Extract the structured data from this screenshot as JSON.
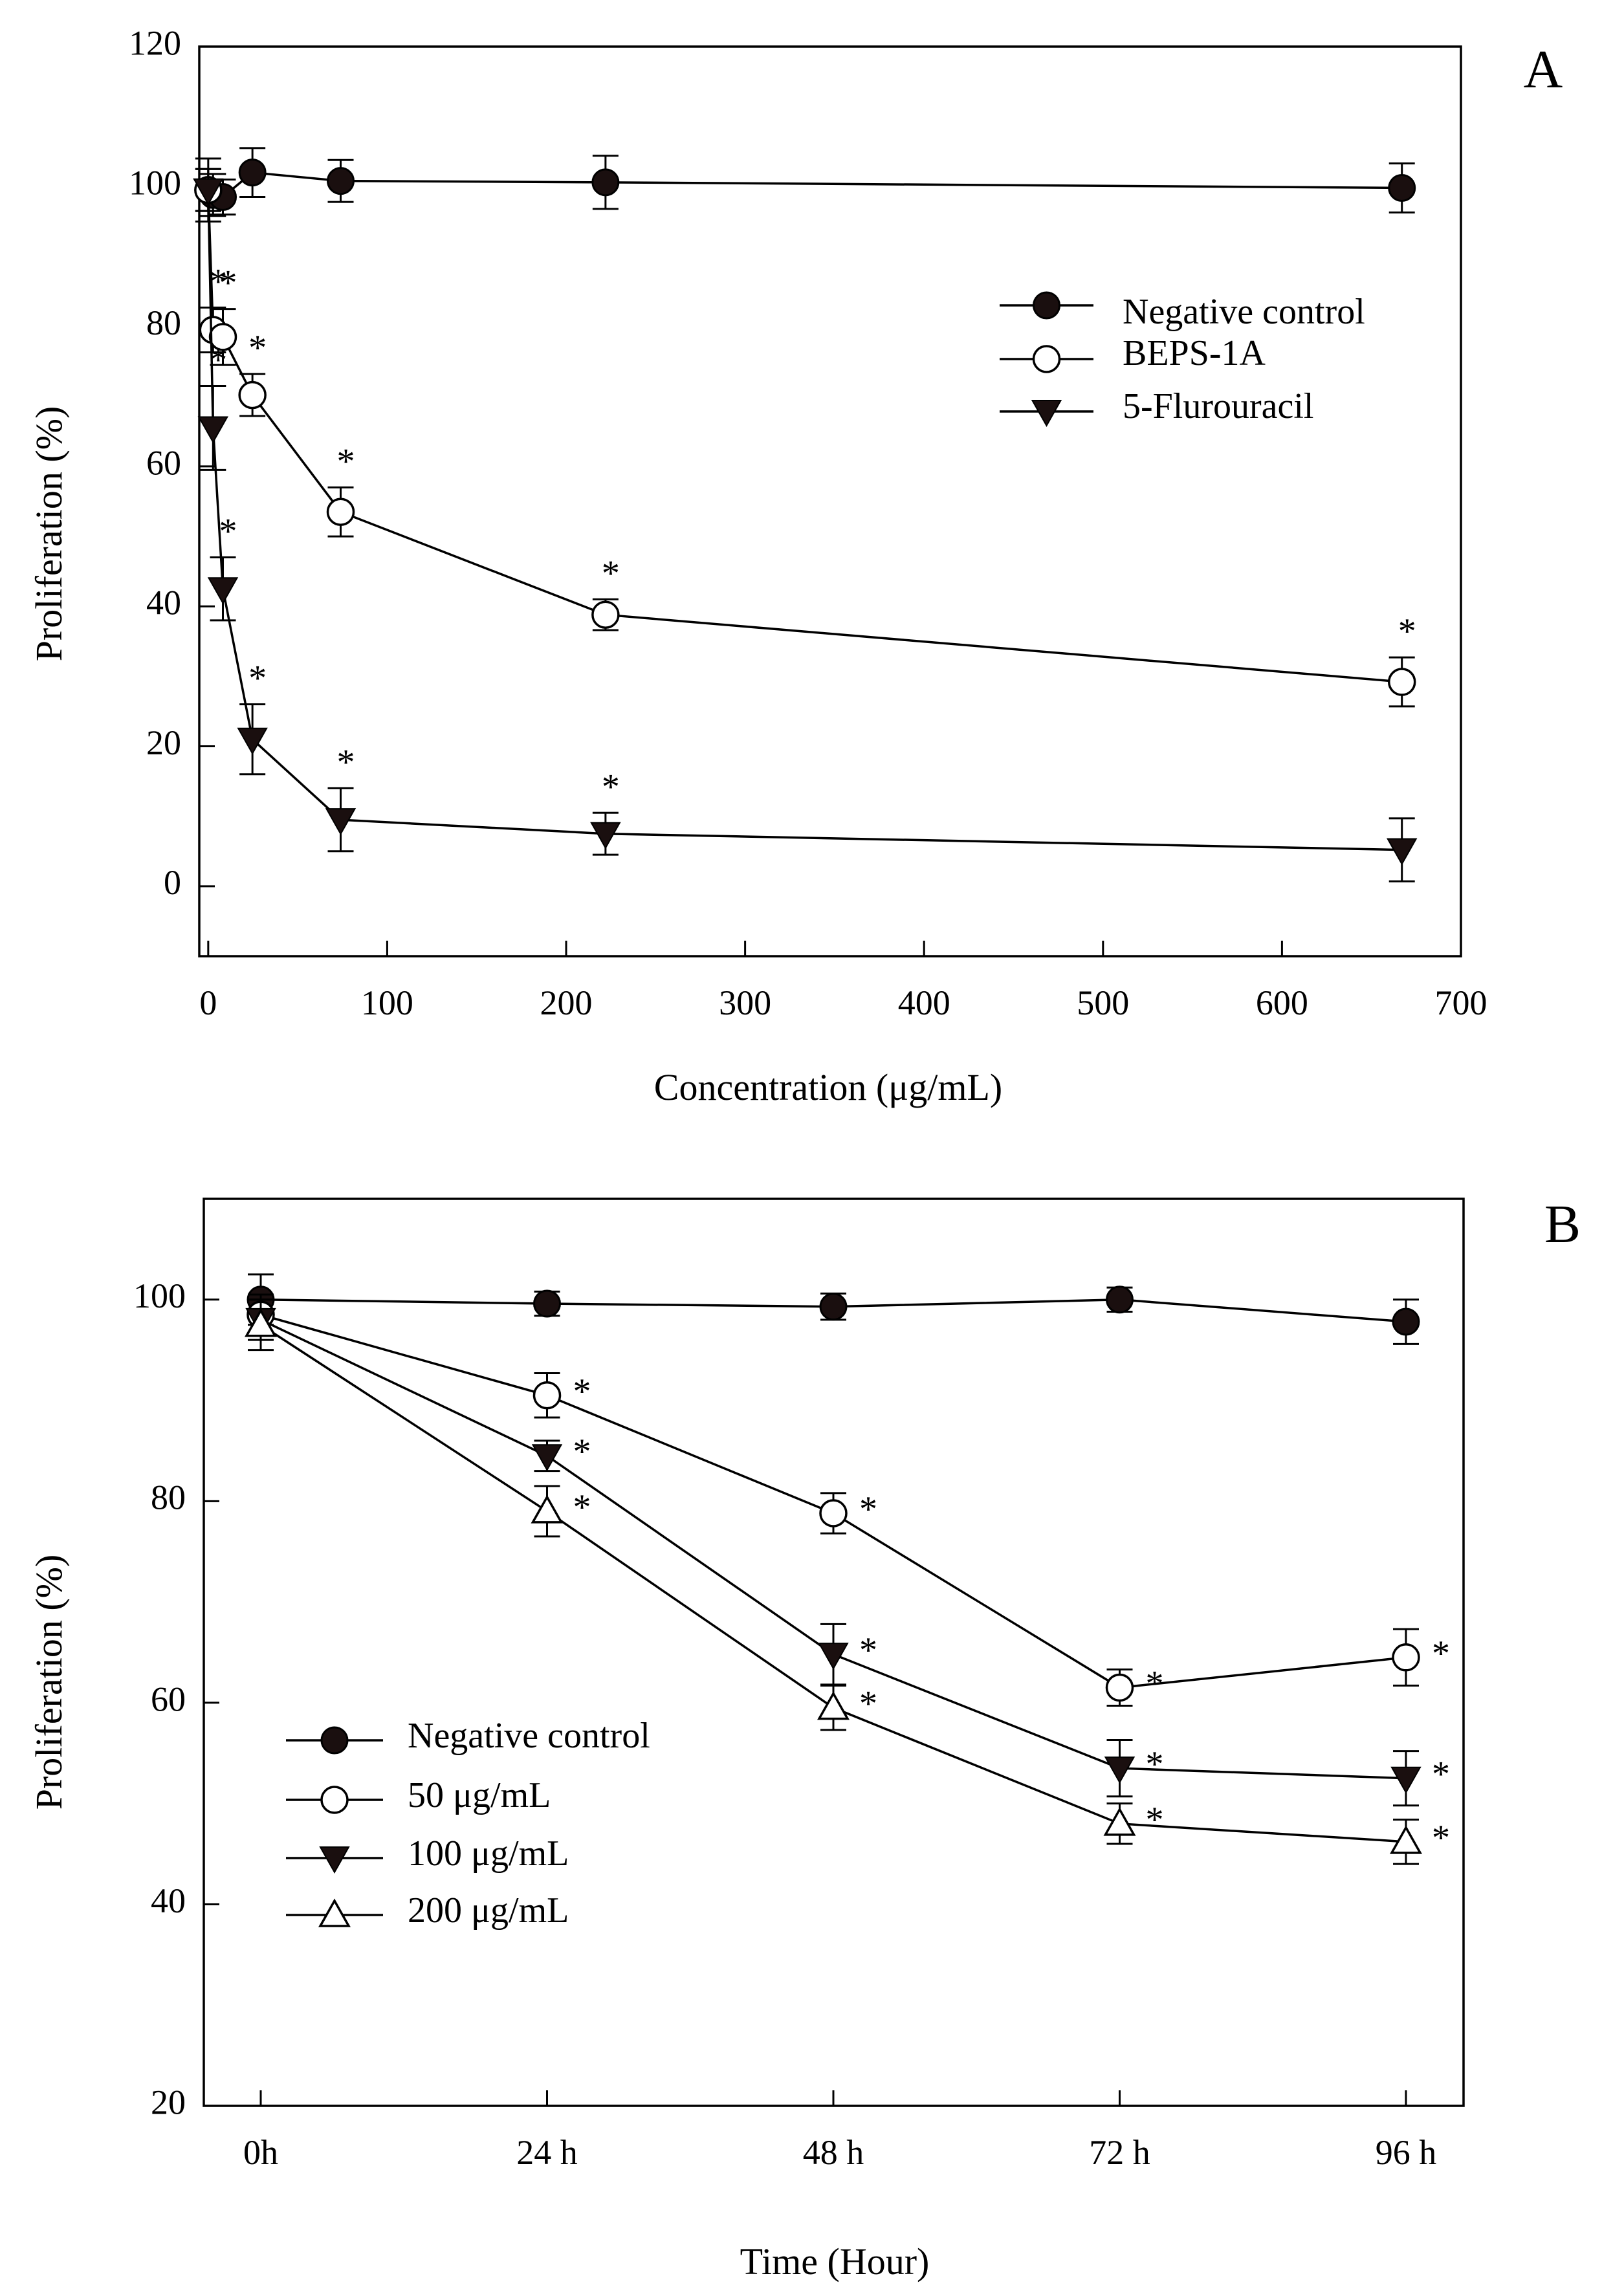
{
  "chart_data": [
    {
      "type": "line",
      "panel": "A",
      "xlabel": "Concentration (μg/mL)",
      "ylabel": "Proliferation (%)",
      "xlim": [
        -5,
        700
      ],
      "ylim": [
        -10,
        120
      ],
      "x_ticks": [
        0,
        100,
        200,
        300,
        400,
        500,
        600,
        700
      ],
      "y_ticks": [
        0,
        20,
        40,
        60,
        80,
        100,
        120
      ],
      "legend_position": "top-right",
      "series": [
        {
          "name": "Negative control",
          "marker": "filled-circle",
          "x": [
            0,
            2.7,
            8.2,
            24.7,
            74,
            222,
            667
          ],
          "y": [
            99.5,
            98.8,
            98.5,
            102,
            100.8,
            100.6,
            99.8
          ],
          "err": [
            4.5,
            3,
            2.5,
            3.5,
            3,
            3.8,
            3.5
          ],
          "significant": [
            false,
            false,
            false,
            false,
            false,
            false,
            false
          ]
        },
        {
          "name": "BEPS-1A",
          "marker": "open-circle",
          "x": [
            0,
            2.7,
            8.2,
            24.7,
            74,
            222,
            667
          ],
          "y": [
            99.5,
            79.5,
            78.5,
            70.2,
            53.5,
            38.8,
            29.2
          ],
          "err": [
            3,
            3.2,
            4,
            3,
            3.5,
            2.2,
            3.5
          ],
          "significant": [
            false,
            true,
            true,
            true,
            true,
            true,
            true
          ]
        },
        {
          "name": "5-Flurouracil",
          "marker": "filled-triangle-down",
          "x": [
            0,
            2.7,
            8.2,
            24.7,
            74,
            222,
            667
          ],
          "y": [
            99.5,
            65.5,
            42.5,
            21,
            9.5,
            7.5,
            5.2
          ],
          "err": [
            3,
            6,
            4.5,
            5,
            4.5,
            3,
            4.5
          ],
          "significant": [
            false,
            true,
            true,
            true,
            true,
            true,
            false
          ]
        }
      ],
      "annotations": {
        "significance_marker": "*"
      }
    },
    {
      "type": "line",
      "panel": "B",
      "xlabel": "Time (Hour)",
      "ylabel": "Proliferation (%)",
      "categories": [
        "0h",
        "24 h",
        "48 h",
        "72 h",
        "96 h"
      ],
      "ylim": [
        20,
        110
      ],
      "y_ticks": [
        20,
        40,
        60,
        80,
        100
      ],
      "legend_position": "bottom-left",
      "series": [
        {
          "name": "Negative control",
          "marker": "filled-circle",
          "values": [
            100,
            99.6,
            99.3,
            100,
            97.8
          ],
          "err": [
            2.5,
            1.2,
            1.3,
            1.2,
            2.2
          ],
          "significant": [
            false,
            false,
            false,
            false,
            false
          ]
        },
        {
          "name": "50  μg/mL",
          "marker": "open-circle",
          "values": [
            98.5,
            90.5,
            78.8,
            61.5,
            64.5
          ],
          "err": [
            2,
            2.2,
            2,
            1.8,
            2.8
          ],
          "significant": [
            false,
            true,
            true,
            true,
            true
          ]
        },
        {
          "name": "100  μg/mL",
          "marker": "filled-triangle-down",
          "values": [
            98,
            84.5,
            64.8,
            53.5,
            52.5
          ],
          "err": [
            2,
            1.5,
            3,
            2.8,
            2.7
          ],
          "significant": [
            false,
            true,
            true,
            true,
            true
          ]
        },
        {
          "name": "200  μg/mL",
          "marker": "open-triangle-up",
          "values": [
            97.5,
            79,
            59.5,
            48,
            46.2
          ],
          "err": [
            2.5,
            2.5,
            2.2,
            2,
            2.2
          ],
          "significant": [
            false,
            true,
            true,
            true,
            true
          ]
        }
      ],
      "annotations": {
        "significance_marker": "*"
      }
    }
  ]
}
